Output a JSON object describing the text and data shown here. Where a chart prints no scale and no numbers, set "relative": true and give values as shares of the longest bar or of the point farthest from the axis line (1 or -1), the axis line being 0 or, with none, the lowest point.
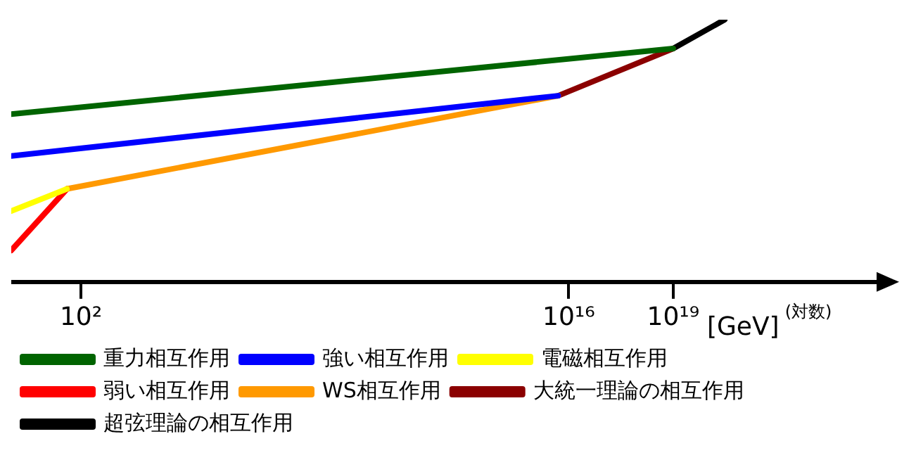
{
  "chart_data": {
    "type": "line",
    "relative": true,
    "log": "x",
    "grid": false,
    "legend": "bottom",
    "marker": "none",
    "line_style": "solid",
    "xlabel": "[GeV]",
    "annotations": [
      "(対数)"
    ],
    "xlim": [
      1,
      1e+25
    ],
    "xticks": [
      {
        "value": 100,
        "label": "10²"
      },
      {
        "value": 1e+16,
        "label": "10¹⁶"
      },
      {
        "value": 1e+19,
        "label": "10¹⁹"
      }
    ],
    "series": [
      {
        "name": "重力相互作用",
        "color": "#006400",
        "x": [
          1,
          1e+19
        ],
        "values": [
          0.64,
          0.89
        ]
      },
      {
        "name": "強い相互作用",
        "color": "#0000ff",
        "x": [
          1,
          5000000000000000.0
        ],
        "values": [
          0.48,
          0.71
        ]
      },
      {
        "name": "電磁相互作用",
        "color": "#ffff00",
        "x": [
          1,
          40
        ],
        "values": [
          0.27,
          0.355
        ]
      },
      {
        "name": "弱い相互作用",
        "color": "#ff0000",
        "x": [
          1,
          40
        ],
        "values": [
          0.12,
          0.355
        ]
      },
      {
        "name": "WS相互作用",
        "color": "#ff9900",
        "x": [
          40,
          5000000000000000.0
        ],
        "values": [
          0.355,
          0.71
        ]
      },
      {
        "name": "大統一理論の相互作用",
        "color": "#8b0000",
        "x": [
          5000000000000000.0,
          1e+19
        ],
        "values": [
          0.71,
          0.89
        ]
      },
      {
        "name": "超弦理論の相互作用",
        "color": "#000000",
        "x": [
          1e+19,
          3e+20
        ],
        "values": [
          0.89,
          1.0
        ]
      }
    ]
  }
}
